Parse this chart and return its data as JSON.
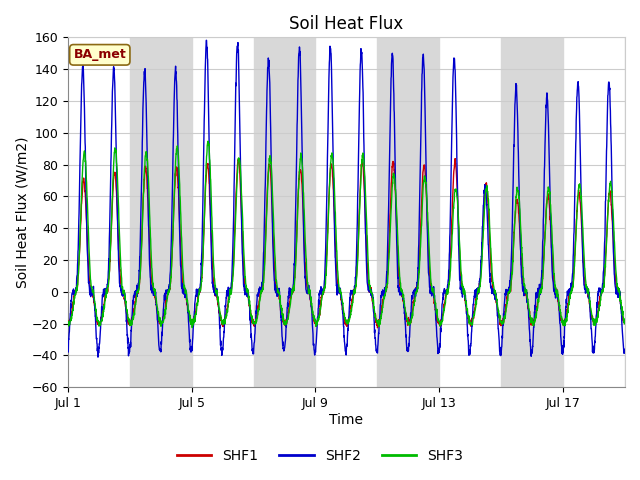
{
  "title": "Soil Heat Flux",
  "xlabel": "Time",
  "ylabel": "Soil Heat Flux (W/m2)",
  "ylim": [
    -60,
    160
  ],
  "yticks": [
    -60,
    -40,
    -20,
    0,
    20,
    40,
    60,
    80,
    100,
    120,
    140,
    160
  ],
  "xtick_labels": [
    "Jul 1",
    "Jul 5",
    "Jul 9",
    "Jul 13",
    "Jul 17"
  ],
  "xtick_positions": [
    0,
    4,
    8,
    12,
    16
  ],
  "n_days": 18,
  "station_label": "BA_met",
  "legend_labels": [
    "SHF1",
    "SHF2",
    "SHF3"
  ],
  "line_colors": [
    "#cc0000",
    "#0000cc",
    "#00bb00"
  ],
  "background_color": "#ffffff",
  "stripe_color": "#d8d8d8",
  "title_fontsize": 12,
  "label_fontsize": 10,
  "tick_fontsize": 9,
  "legend_fontsize": 10,
  "shf1_day_amps": [
    70,
    75,
    78,
    78,
    80,
    83,
    80,
    78,
    80,
    82,
    82,
    80,
    82,
    68,
    58,
    60,
    62,
    62
  ],
  "shf2_day_amps": [
    142,
    141,
    140,
    139,
    158,
    157,
    146,
    153,
    154,
    152,
    149,
    148,
    148,
    66,
    128,
    123,
    132,
    133
  ],
  "shf3_day_amps": [
    88,
    90,
    88,
    91,
    94,
    84,
    84,
    85,
    87,
    86,
    73,
    72,
    65,
    65,
    65,
    65,
    67,
    68
  ],
  "shf1_night_amp": -20,
  "shf2_night_amp": -38,
  "shf3_night_amp": -20
}
